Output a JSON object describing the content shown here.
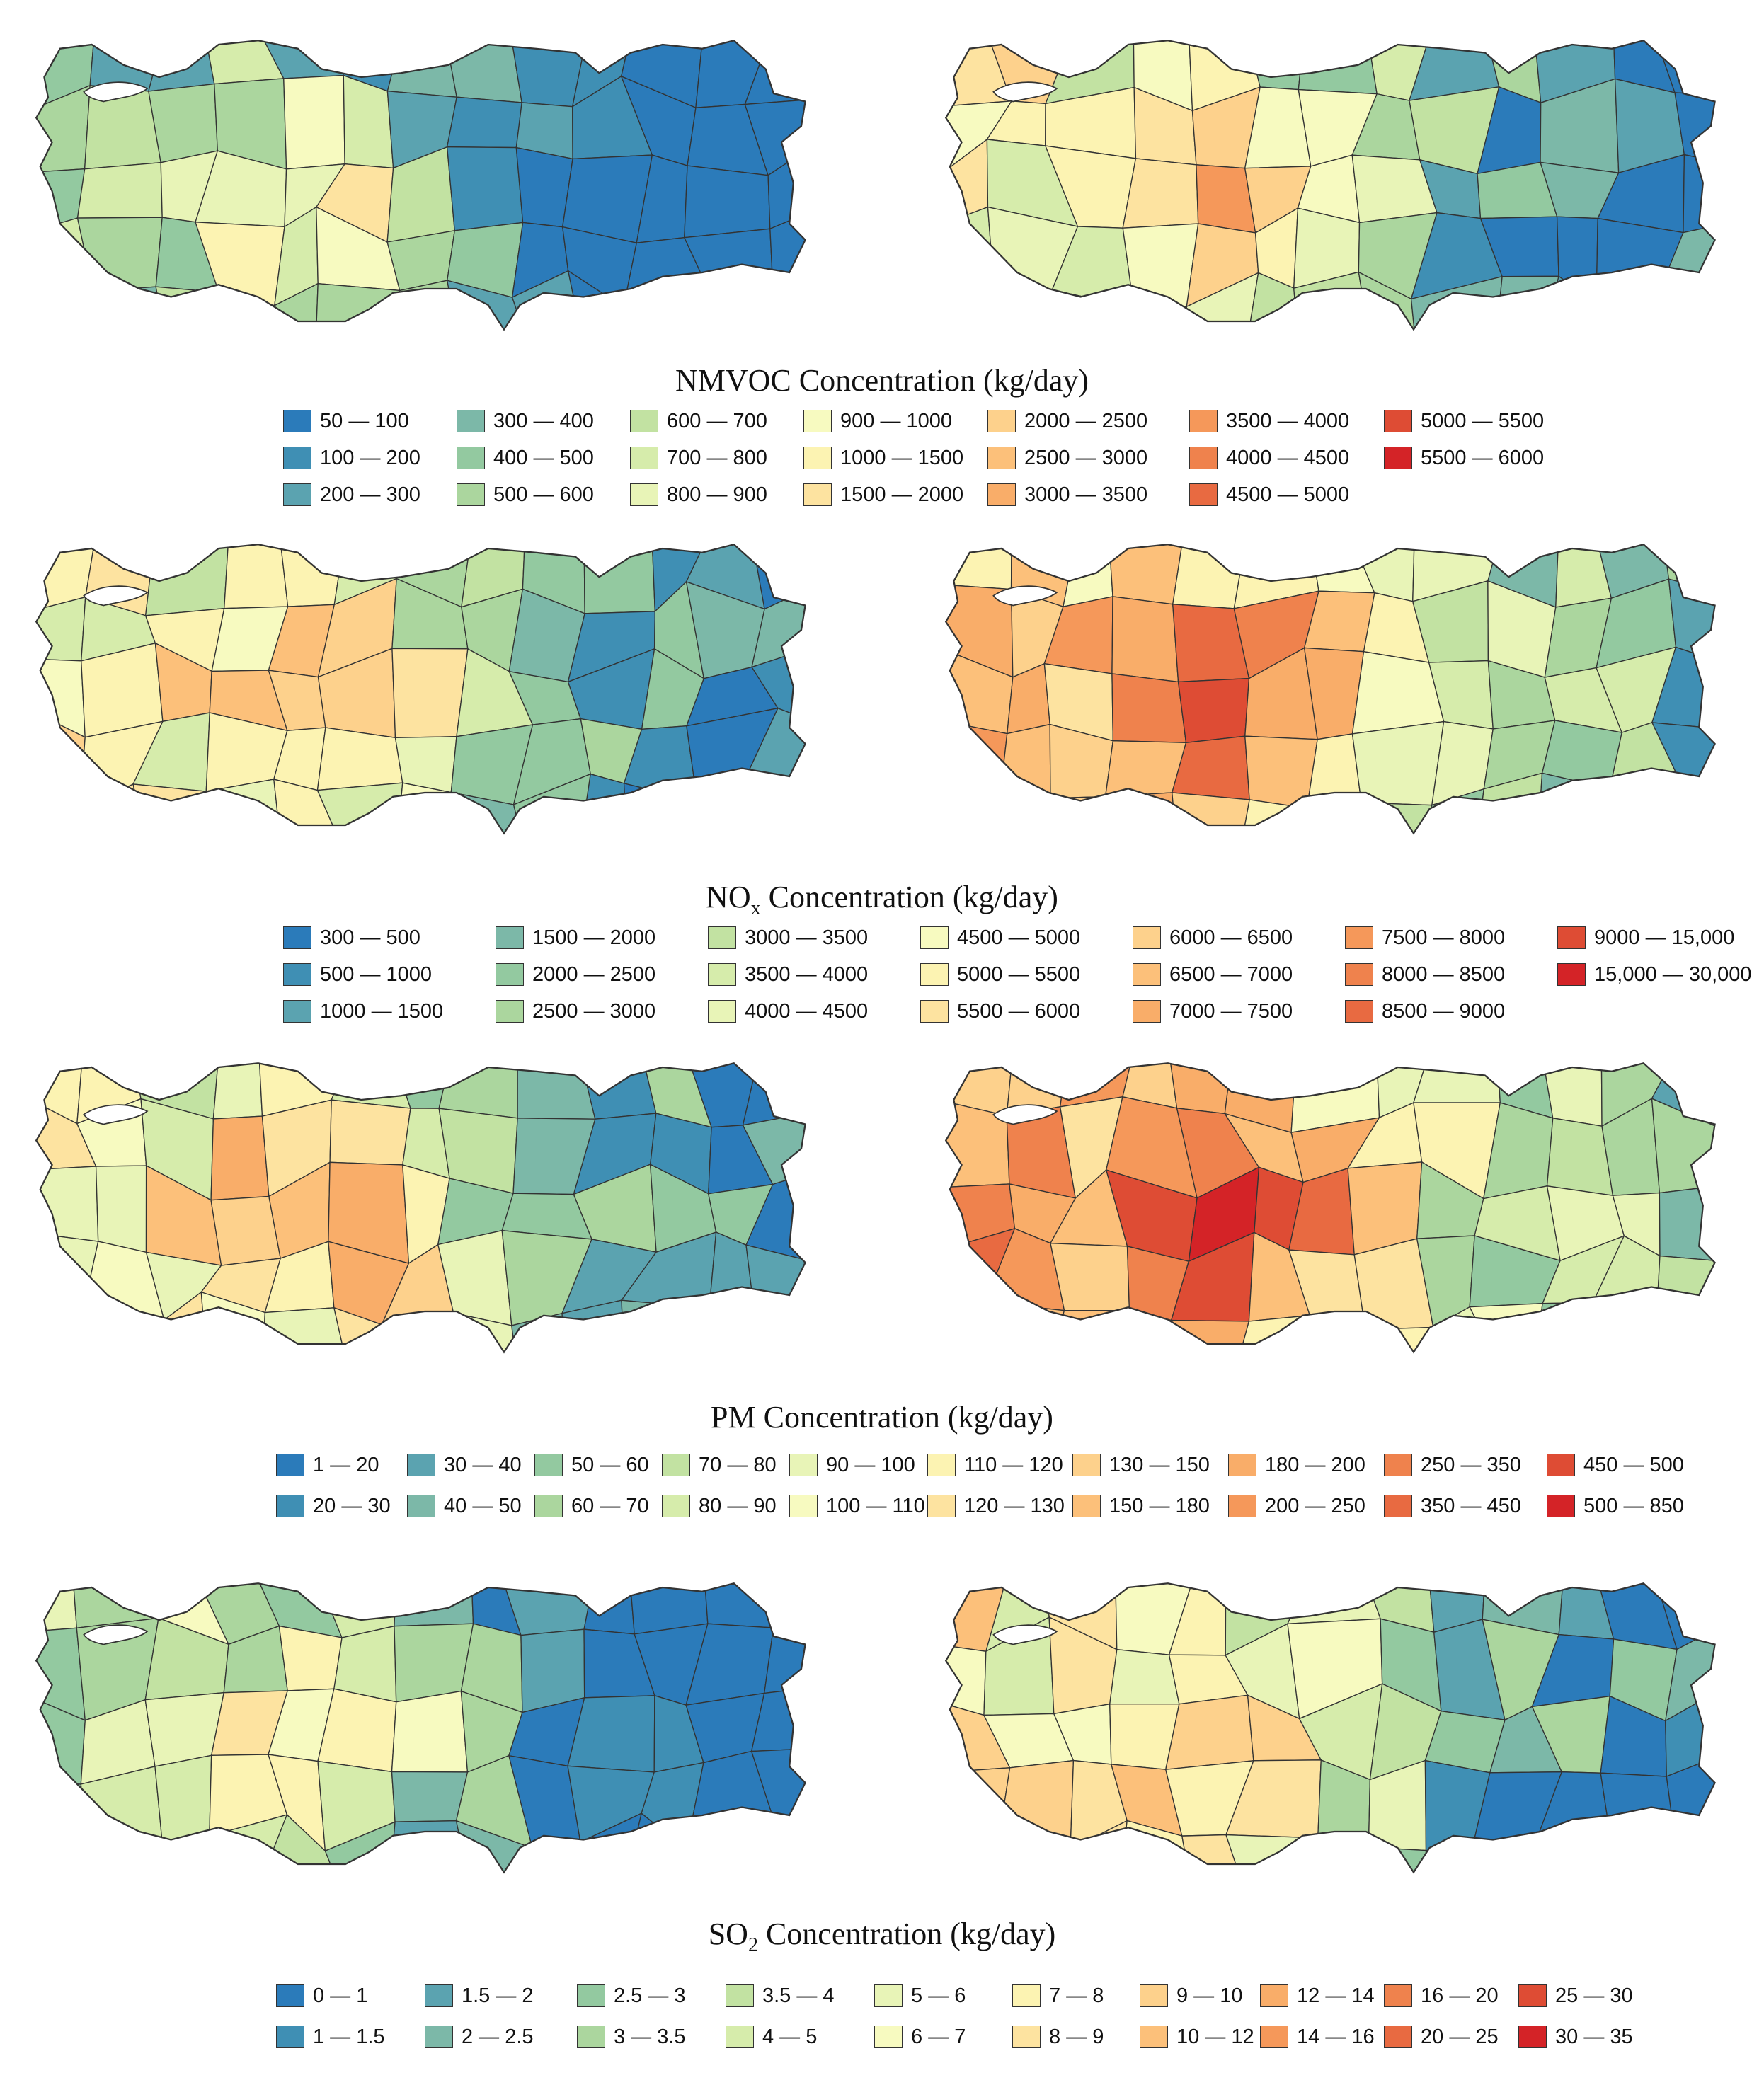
{
  "panels": [
    {
      "id": "nmvoc",
      "title_main": "NMVOC Concentration (kg/day)",
      "title_sub": "",
      "title_tail": "",
      "legend": [
        {
          "label": "50 — 100",
          "color": "#2b7bba"
        },
        {
          "label": "100 — 200",
          "color": "#3f8fb4"
        },
        {
          "label": "200 — 300",
          "color": "#5ba3b0"
        },
        {
          "label": "300 — 400",
          "color": "#7cb8a8"
        },
        {
          "label": "400 — 500",
          "color": "#93c9a0"
        },
        {
          "label": "500 — 600",
          "color": "#abd69e"
        },
        {
          "label": "600 — 700",
          "color": "#c2e2a2"
        },
        {
          "label": "700 — 800",
          "color": "#d6ecab"
        },
        {
          "label": "800 — 900",
          "color": "#e8f4b7"
        },
        {
          "label": "900 — 1000",
          "color": "#f7fac0"
        },
        {
          "label": "1000 — 1500",
          "color": "#fcf3b2"
        },
        {
          "label": "1500 — 2000",
          "color": "#fde3a0"
        },
        {
          "label": "2000 — 2500",
          "color": "#fdd18c"
        },
        {
          "label": "2500 — 3000",
          "color": "#fcc07a"
        },
        {
          "label": "3000 — 3500",
          "color": "#f9ad69"
        },
        {
          "label": "3500 — 4000",
          "color": "#f5985a"
        },
        {
          "label": "4000 — 4500",
          "color": "#ef824d"
        },
        {
          "label": "4500 — 5000",
          "color": "#e86a41"
        },
        {
          "label": "5000 — 5500",
          "color": "#de4c34"
        },
        {
          "label": "5500 — 6000",
          "color": "#d42327"
        }
      ]
    },
    {
      "id": "nox",
      "title_main": "NO",
      "title_sub": "x",
      "title_tail": " Concentration (kg/day)",
      "legend": [
        {
          "label": "300 — 500",
          "color": "#2b7bba"
        },
        {
          "label": "500 — 1000",
          "color": "#3f8fb4"
        },
        {
          "label": "1000 — 1500",
          "color": "#5ba3b0"
        },
        {
          "label": "1500 — 2000",
          "color": "#7cb8a8"
        },
        {
          "label": "2000 — 2500",
          "color": "#93c9a0"
        },
        {
          "label": "2500 — 3000",
          "color": "#abd69e"
        },
        {
          "label": "3000 — 3500",
          "color": "#c2e2a2"
        },
        {
          "label": "3500 — 4000",
          "color": "#d6ecab"
        },
        {
          "label": "4000 — 4500",
          "color": "#e8f4b7"
        },
        {
          "label": "4500 — 5000",
          "color": "#f7fac0"
        },
        {
          "label": "5000 — 5500",
          "color": "#fcf3b2"
        },
        {
          "label": "5500 — 6000",
          "color": "#fde3a0"
        },
        {
          "label": "6000 — 6500",
          "color": "#fdd18c"
        },
        {
          "label": "6500 — 7000",
          "color": "#fcc07a"
        },
        {
          "label": "7000 — 7500",
          "color": "#f9ad69"
        },
        {
          "label": "7500 — 8000",
          "color": "#f5985a"
        },
        {
          "label": "8000 — 8500",
          "color": "#ef824d"
        },
        {
          "label": "8500 — 9000",
          "color": "#e86a41"
        },
        {
          "label": "9000 — 15,000",
          "color": "#de4c34"
        },
        {
          "label": "15,000 — 30,000",
          "color": "#d42327"
        }
      ]
    },
    {
      "id": "pm",
      "title_main": "PM Concentration (kg/day)",
      "title_sub": "",
      "title_tail": "",
      "legend": [
        {
          "label": "1 — 20",
          "color": "#2b7bba"
        },
        {
          "label": "20 — 30",
          "color": "#3f8fb4"
        },
        {
          "label": "30 — 40",
          "color": "#5ba3b0"
        },
        {
          "label": "40 — 50",
          "color": "#7cb8a8"
        },
        {
          "label": "50 — 60",
          "color": "#93c9a0"
        },
        {
          "label": "60 — 70",
          "color": "#abd69e"
        },
        {
          "label": "70 — 80",
          "color": "#c2e2a2"
        },
        {
          "label": "80 — 90",
          "color": "#d6ecab"
        },
        {
          "label": "90 — 100",
          "color": "#e8f4b7"
        },
        {
          "label": "100 — 110",
          "color": "#f7fac0"
        },
        {
          "label": "110 — 120",
          "color": "#fcf3b2"
        },
        {
          "label": "120 — 130",
          "color": "#fde3a0"
        },
        {
          "label": "130 — 150",
          "color": "#fdd18c"
        },
        {
          "label": "150 — 180",
          "color": "#fcc07a"
        },
        {
          "label": "180 — 200",
          "color": "#f9ad69"
        },
        {
          "label": "200 — 250",
          "color": "#f5985a"
        },
        {
          "label": "250 — 350",
          "color": "#ef824d"
        },
        {
          "label": "350 — 450",
          "color": "#e86a41"
        },
        {
          "label": "450 — 500",
          "color": "#de4c34"
        },
        {
          "label": "500 — 850",
          "color": "#d42327"
        }
      ]
    },
    {
      "id": "so2",
      "title_main": "SO",
      "title_sub": "2",
      "title_tail": " Concentration (kg/day)",
      "legend": [
        {
          "label": "0 — 1",
          "color": "#2b7bba"
        },
        {
          "label": "1 — 1.5",
          "color": "#3f8fb4"
        },
        {
          "label": "1.5 — 2",
          "color": "#5ba3b0"
        },
        {
          "label": "2 — 2.5",
          "color": "#7cb8a8"
        },
        {
          "label": "2.5 — 3",
          "color": "#93c9a0"
        },
        {
          "label": "3 — 3.5",
          "color": "#abd69e"
        },
        {
          "label": "3.5 — 4",
          "color": "#c2e2a2"
        },
        {
          "label": "4 — 5",
          "color": "#d6ecab"
        },
        {
          "label": "5 — 6",
          "color": "#e8f4b7"
        },
        {
          "label": "6 — 7",
          "color": "#f7fac0"
        },
        {
          "label": "7 — 8",
          "color": "#fcf3b2"
        },
        {
          "label": "8 — 9",
          "color": "#fde3a0"
        },
        {
          "label": "9 — 10",
          "color": "#fdd18c"
        },
        {
          "label": "10 — 12",
          "color": "#fcc07a"
        },
        {
          "label": "12 — 14",
          "color": "#f9ad69"
        },
        {
          "label": "14 — 16",
          "color": "#f5985a"
        },
        {
          "label": "16 — 20",
          "color": "#ef824d"
        },
        {
          "label": "20 — 25",
          "color": "#e86a41"
        },
        {
          "label": "25 — 30",
          "color": "#de4c34"
        },
        {
          "label": "30 — 35",
          "color": "#d42327"
        }
      ]
    }
  ]
}
